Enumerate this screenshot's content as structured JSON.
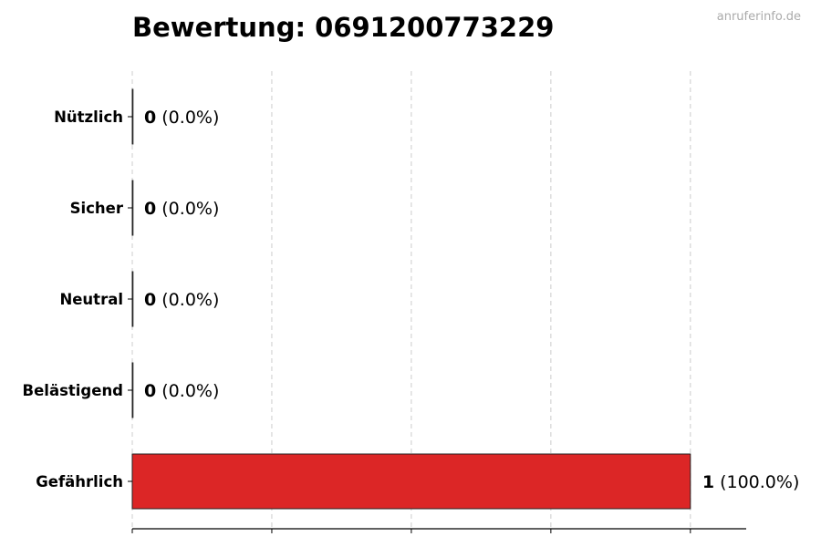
{
  "title": "Bewertung: 0691200773229",
  "watermark": "anruferinfo.de",
  "chart_data": {
    "type": "bar",
    "orientation": "horizontal",
    "title": "Bewertung: 0691200773229",
    "categories": [
      "Nützlich",
      "Sicher",
      "Neutral",
      "Belästigend",
      "Gefährlich"
    ],
    "values": [
      0,
      0,
      0,
      0,
      1
    ],
    "value_labels": [
      {
        "count": "0",
        "percent": "(0.0%)"
      },
      {
        "count": "0",
        "percent": "(0.0%)"
      },
      {
        "count": "0",
        "percent": "(0.0%)"
      },
      {
        "count": "0",
        "percent": "(0.0%)"
      },
      {
        "count": "1",
        "percent": "(100.0%)"
      }
    ],
    "bar_color": "#DC2626",
    "xlim": [
      0,
      1.1
    ],
    "xticks": [
      0,
      0.25,
      0.5,
      0.75,
      1
    ],
    "xtick_labels_shown": false,
    "grid": "x dashed",
    "xlabel": "",
    "ylabel": ""
  }
}
